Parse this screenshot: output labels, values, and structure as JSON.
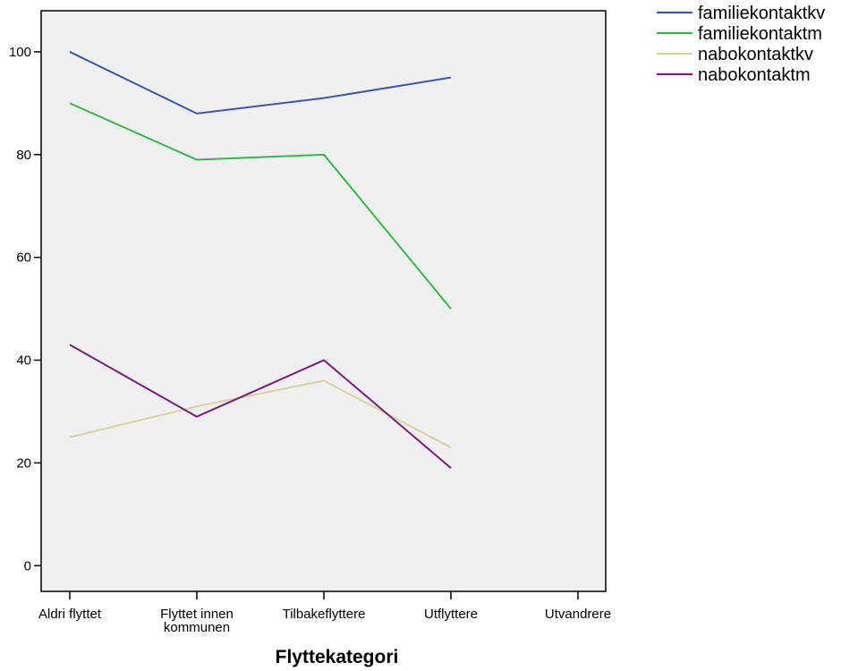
{
  "chart_data": {
    "type": "line",
    "categories": [
      "Aldri flyttet",
      "Flyttet innen kommunen",
      "Tilbakeflyttere",
      "Utflyttere",
      "Utvandrere"
    ],
    "category_label_lines": [
      [
        "Aldri flyttet"
      ],
      [
        "Flyttet innen",
        "kommunen"
      ],
      [
        "Tilbakeflyttere"
      ],
      [
        "Utflyttere"
      ],
      [
        "Utvandrere"
      ]
    ],
    "xlabel": "Flyttekategori",
    "ylabel": "",
    "title": "",
    "ylim": [
      -5,
      108
    ],
    "yticks": [
      0,
      20,
      40,
      60,
      80,
      100
    ],
    "grid": false,
    "legend_position": "top-right, outside plot",
    "plot_background": "#eff0f2",
    "series": [
      {
        "name": "familiekontaktkv",
        "color": "#3c58a8",
        "values": [
          100,
          88,
          91,
          95,
          null
        ]
      },
      {
        "name": "familiekontaktm",
        "color": "#3cb44a",
        "values": [
          90,
          79,
          80,
          50,
          null
        ]
      },
      {
        "name": "nabokontaktkv",
        "color": "#d8d3a0",
        "values": [
          25,
          31,
          36,
          23,
          null
        ]
      },
      {
        "name": "nabokontaktm",
        "color": "#7a1e78",
        "values": [
          43,
          29,
          40,
          19,
          null
        ]
      }
    ]
  }
}
